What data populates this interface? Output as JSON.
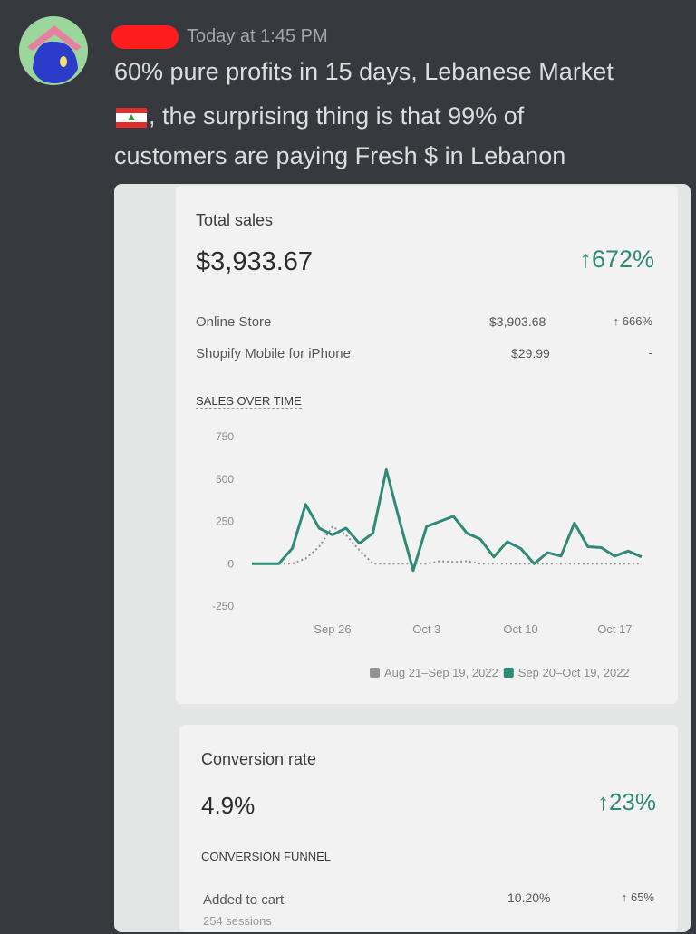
{
  "message": {
    "timestamp": "Today at 1:45 PM",
    "line1": "60% pure profits in 15 days, Lebanese Market",
    "line2": ", the surprising thing is that 99% of",
    "line3": "customers are paying Fresh $ in Lebanon"
  },
  "sales_card": {
    "title": "Total sales",
    "total": "$3,933.67",
    "change": "↑672%",
    "rows": [
      [
        "Online Store",
        "$3,903.68",
        "↑ 666%"
      ],
      [
        "Shopify Mobile for iPhone",
        "$29.99",
        "-"
      ]
    ],
    "section": "SALES OVER TIME"
  },
  "chart_data": {
    "type": "line",
    "categories": [
      null,
      null,
      null,
      null,
      null,
      null,
      "Sep 26",
      null,
      null,
      null,
      null,
      null,
      null,
      "Oct 3",
      null,
      null,
      null,
      null,
      null,
      null,
      "Oct 10",
      null,
      null,
      null,
      null,
      null,
      null,
      "Oct 17",
      null,
      null
    ],
    "series": [
      {
        "name": "Aug 21–Sep 19, 2022",
        "color": "#8f9391",
        "dashed": true,
        "values": [
          0,
          0,
          0,
          0,
          30,
          100,
          220,
          170,
          80,
          0,
          0,
          0,
          0,
          0,
          15,
          10,
          15,
          0,
          0,
          0,
          0,
          0,
          0,
          0,
          0,
          0,
          0,
          0,
          0,
          0
        ]
      },
      {
        "name": "Sep 20–Oct 19, 2022",
        "color": "#2f8a78",
        "values": [
          0,
          0,
          0,
          90,
          350,
          210,
          170,
          210,
          120,
          180,
          555,
          250,
          -40,
          220,
          250,
          280,
          180,
          145,
          40,
          130,
          90,
          0,
          65,
          45,
          240,
          100,
          95,
          45,
          75,
          40
        ]
      }
    ],
    "ylim": [
      -250,
      750
    ],
    "yticks": [
      750,
      500,
      250,
      0,
      -250
    ],
    "grid": false
  },
  "conversion_card": {
    "title": "Conversion rate",
    "value": "4.9%",
    "change": "↑23%",
    "section": "CONVERSION FUNNEL",
    "row": {
      "label": "Added to cart",
      "sub": "254 sessions",
      "value": "10.20%",
      "change": "↑ 65%"
    }
  }
}
